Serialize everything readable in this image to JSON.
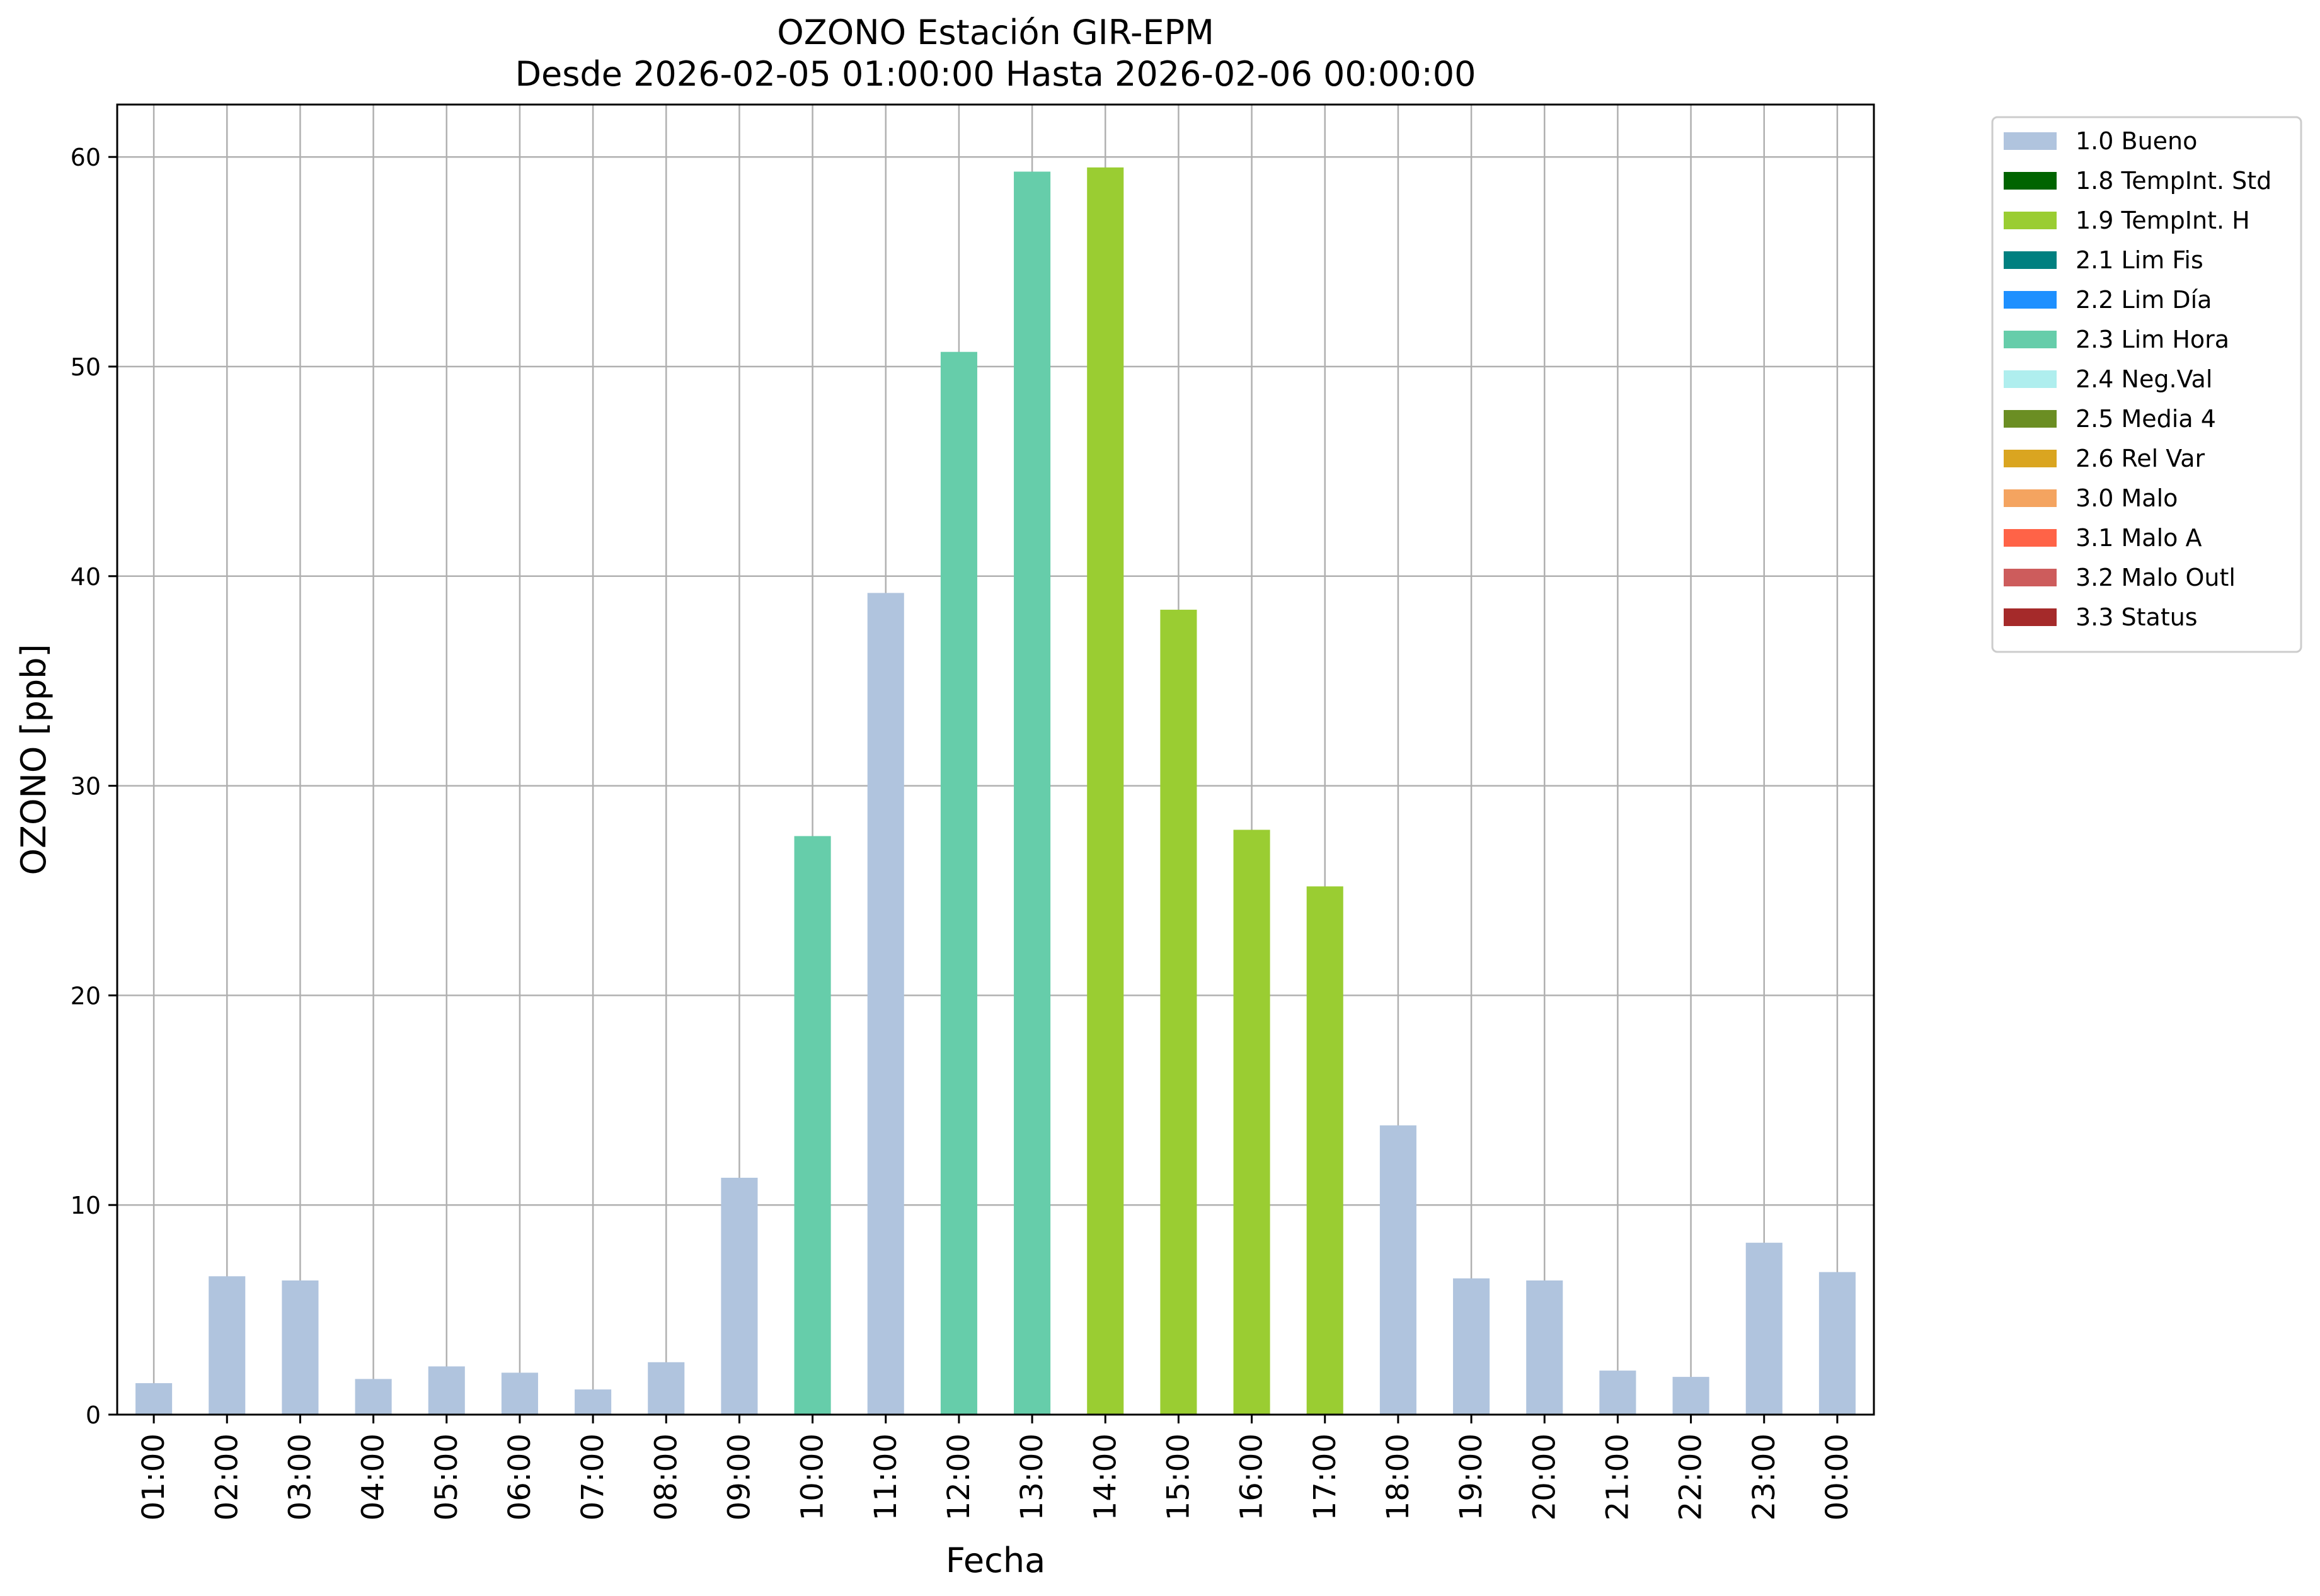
{
  "chart_data": {
    "type": "bar",
    "title": "OZONO Estación GIR-EPM",
    "subtitle": "Desde 2026-02-05 01:00:00 Hasta 2026-02-06 00:00:00",
    "xlabel": "Fecha",
    "ylabel": "OZONO [ppb]",
    "ylim": [
      0,
      62.5
    ],
    "yticks": [
      0,
      10,
      20,
      30,
      40,
      50,
      60
    ],
    "grid": true,
    "legend_position": "outside-right-top",
    "categories": [
      "01:00",
      "02:00",
      "03:00",
      "04:00",
      "05:00",
      "06:00",
      "07:00",
      "08:00",
      "09:00",
      "10:00",
      "11:00",
      "12:00",
      "13:00",
      "14:00",
      "15:00",
      "16:00",
      "17:00",
      "18:00",
      "19:00",
      "20:00",
      "21:00",
      "22:00",
      "23:00",
      "00:00"
    ],
    "values": [
      1.5,
      6.6,
      6.4,
      1.7,
      2.3,
      2.0,
      1.2,
      2.5,
      11.3,
      27.6,
      39.2,
      50.7,
      59.3,
      59.5,
      38.4,
      27.9,
      25.2,
      13.8,
      6.5,
      6.4,
      2.1,
      1.8,
      8.2,
      6.8
    ],
    "flags": [
      "1.0 Bueno",
      "1.0 Bueno",
      "1.0 Bueno",
      "1.0 Bueno",
      "1.0 Bueno",
      "1.0 Bueno",
      "1.0 Bueno",
      "1.0 Bueno",
      "1.0 Bueno",
      "2.3 Lim Hora",
      "1.0 Bueno",
      "2.3 Lim Hora",
      "2.3 Lim Hora",
      "1.9 TempInt. H",
      "1.9 TempInt. H",
      "1.9 TempInt. H",
      "1.9 TempInt. H",
      "1.0 Bueno",
      "1.0 Bueno",
      "1.0 Bueno",
      "1.0 Bueno",
      "1.0 Bueno",
      "1.0 Bueno",
      "1.0 Bueno"
    ],
    "legend": [
      {
        "label": "1.0 Bueno",
        "color": "#b0c4de"
      },
      {
        "label": "1.8 TempInt. Std",
        "color": "#006400"
      },
      {
        "label": "1.9 TempInt. H",
        "color": "#9acd32"
      },
      {
        "label": "2.1 Lim Fis",
        "color": "#008080"
      },
      {
        "label": "2.2 Lim Día",
        "color": "#1e90ff"
      },
      {
        "label": "2.3 Lim Hora",
        "color": "#66cdaa"
      },
      {
        "label": "2.4 Neg.Val",
        "color": "#afeeee"
      },
      {
        "label": "2.5 Media 4",
        "color": "#6b8e23"
      },
      {
        "label": "2.6 Rel Var",
        "color": "#daa520"
      },
      {
        "label": "3.0 Malo",
        "color": "#f4a460"
      },
      {
        "label": "3.1 Malo A",
        "color": "#ff6347"
      },
      {
        "label": "3.2 Malo Outl",
        "color": "#cd5c5c"
      },
      {
        "label": "3.3 Status",
        "color": "#a52a2a"
      }
    ]
  }
}
